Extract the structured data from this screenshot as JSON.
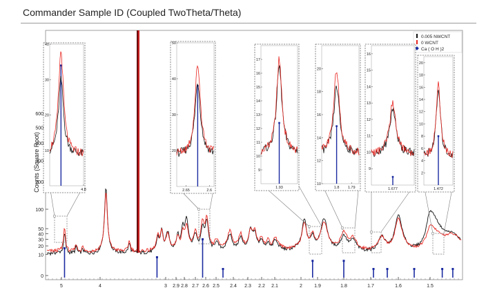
{
  "title": "Commander Sample ID (Coupled TwoTheta/Theta)",
  "chart_data": {
    "type": "line",
    "title": "Commander Sample ID (Coupled TwoTheta/Theta)",
    "ylabel": "Counts (Square Root)",
    "xlabel": "",
    "x_axis": "d-spacing",
    "x_range": [
      5.2,
      1.46
    ],
    "y_scale": "square root",
    "ylim": [
      0,
      680
    ],
    "y_ticks": [
      0,
      10,
      20,
      30,
      40,
      50,
      100,
      200,
      300,
      400,
      500,
      600
    ],
    "x_ticks": [
      5,
      4,
      3,
      2.9,
      2.8,
      2.7,
      2.6,
      2.5,
      2.4,
      2.3,
      2.2,
      2.1,
      2,
      1.9,
      1.8,
      1.7,
      1.6,
      1.5
    ],
    "legend": {
      "placement": "top-right",
      "entries": [
        {
          "label": "0.005 NWCNT",
          "color": "#111111",
          "marker": "bar"
        },
        {
          "label": "0 WCNT",
          "color": "#e8251f",
          "marker": "bar"
        },
        {
          "label": "Ca ( O H )2",
          "color": "#1a2aa0",
          "marker": "diamond"
        }
      ]
    },
    "series": [
      {
        "name": "0.005 NWCNT",
        "color": "#111111",
        "baseline": 11,
        "peaks": [
          [
            4.92,
            30
          ],
          [
            4.62,
            8
          ],
          [
            4.45,
            5
          ],
          [
            3.9,
            170
          ],
          [
            3.5,
            12
          ],
          [
            3.1,
            20
          ],
          [
            3.05,
            35
          ],
          [
            2.98,
            30
          ],
          [
            2.88,
            25
          ],
          [
            2.82,
            40
          ],
          [
            2.78,
            60
          ],
          [
            2.7,
            25
          ],
          [
            2.63,
            40
          ],
          [
            2.59,
            55
          ],
          [
            2.5,
            12
          ],
          [
            2.42,
            25
          ],
          [
            2.35,
            20
          ],
          [
            2.28,
            35
          ],
          [
            2.25,
            25
          ],
          [
            2.2,
            15
          ],
          [
            2.15,
            12
          ],
          [
            2.1,
            15
          ],
          [
            1.98,
            60
          ],
          [
            1.93,
            22
          ],
          [
            1.875,
            60
          ],
          [
            1.8,
            22
          ],
          [
            1.765,
            15
          ],
          [
            1.66,
            22
          ],
          [
            1.6,
            70
          ],
          [
            1.5,
            80
          ],
          [
            1.472,
            18
          ]
        ]
      },
      {
        "name": "0 WCNT",
        "color": "#e8251f",
        "baseline": 13,
        "peaks": [
          [
            4.92,
            40
          ],
          [
            4.62,
            10
          ],
          [
            4.45,
            6
          ],
          [
            3.9,
            150
          ],
          [
            3.5,
            14
          ],
          [
            3.1,
            22
          ],
          [
            3.05,
            32
          ],
          [
            2.98,
            25
          ],
          [
            2.88,
            22
          ],
          [
            2.82,
            30
          ],
          [
            2.78,
            40
          ],
          [
            2.7,
            30
          ],
          [
            2.63,
            50
          ],
          [
            2.59,
            60
          ],
          [
            2.5,
            14
          ],
          [
            2.42,
            30
          ],
          [
            2.35,
            25
          ],
          [
            2.28,
            30
          ],
          [
            2.25,
            28
          ],
          [
            2.2,
            18
          ],
          [
            2.15,
            14
          ],
          [
            2.1,
            18
          ],
          [
            1.98,
            50
          ],
          [
            1.93,
            25
          ],
          [
            1.875,
            50
          ],
          [
            1.8,
            28
          ],
          [
            1.765,
            17
          ],
          [
            1.66,
            20
          ],
          [
            1.6,
            60
          ],
          [
            1.5,
            40
          ],
          [
            1.472,
            20
          ]
        ]
      }
    ],
    "reference_lines": {
      "name": "Ca ( O H )2",
      "color": "#1a2aa0",
      "sticks": [
        [
          4.92,
          75
        ],
        [
          3.11,
          50
        ],
        [
          2.63,
          100
        ],
        [
          2.46,
          5
        ],
        [
          1.93,
          40
        ],
        [
          1.8,
          40
        ],
        [
          1.69,
          5
        ],
        [
          1.64,
          3
        ],
        [
          1.55,
          5
        ],
        [
          1.485,
          8
        ],
        [
          1.472,
          8
        ]
      ]
    },
    "main_spike": {
      "x": 3.35,
      "y": 680,
      "colors": [
        "#6b1010",
        "#c81e1e"
      ]
    },
    "insets": [
      {
        "x_range": [
          4.95,
          4.8
        ],
        "x_ticks": [
          "4.8"
        ],
        "y_range": [
          0,
          40
        ],
        "y_ticks": [
          "10",
          "20",
          "30",
          "40"
        ],
        "peak_x": 4.9,
        "peak_black": 30,
        "peak_red": 38,
        "stick_height": 34,
        "source_x_range": [
          4.98,
          4.86
        ]
      },
      {
        "x_range": [
          2.67,
          2.59
        ],
        "x_ticks": [
          "2.65",
          "2.6"
        ],
        "y_range": [
          10,
          50
        ],
        "y_ticks": [
          "20",
          "30",
          "40",
          "50"
        ],
        "peak_x": 2.625,
        "peak_black": 39,
        "peak_red": 44,
        "stick_height": 38,
        "source_x_range": [
          2.67,
          2.59
        ]
      },
      {
        "x_range": [
          1.95,
          1.91
        ],
        "x_ticks": [
          "1.93"
        ],
        "y_range": [
          8,
          18
        ],
        "y_ticks": [
          "9",
          "10",
          "11",
          "12",
          "13",
          "14",
          "15",
          "16",
          "17"
        ],
        "peak_x": 1.93,
        "peak_black": 16.5,
        "peak_red": 17,
        "stick_height": 12.4,
        "source_x_range": [
          1.95,
          1.91
        ]
      },
      {
        "x_range": [
          1.81,
          1.785
        ],
        "x_ticks": [
          "1.8",
          "1.79"
        ],
        "y_range": [
          10,
          22
        ],
        "y_ticks": [
          "10",
          "12",
          "14",
          "16",
          "18",
          "20"
        ],
        "peak_x": 1.8,
        "peak_black": 18.5,
        "peak_red": 20,
        "stick_height": 15,
        "source_x_range": [
          1.81,
          1.785
        ]
      },
      {
        "x_range": [
          1.685,
          1.669
        ],
        "x_ticks": [
          "1.677"
        ],
        "y_range": [
          8,
          16.5
        ],
        "y_ticks": [
          "9",
          "10",
          "11",
          "12",
          "13",
          "14",
          "15",
          "16"
        ],
        "peak_x": 1.677,
        "peak_black": 12.7,
        "peak_red": 13,
        "stick_height": 8.5,
        "source_x_range": [
          1.69,
          1.665
        ]
      },
      {
        "x_range": [
          1.478,
          1.466
        ],
        "x_ticks": [
          "1.472"
        ],
        "y_range": [
          0,
          21
        ],
        "y_ticks": [
          "2",
          "4",
          "6",
          "8",
          "10",
          "12",
          "14",
          "16",
          "18",
          "20"
        ],
        "peak_x": 1.472,
        "peak_black": 15.5,
        "peak_red": 16.5,
        "stick_height": 8,
        "source_x_range": [
          1.48,
          1.465
        ]
      }
    ]
  }
}
